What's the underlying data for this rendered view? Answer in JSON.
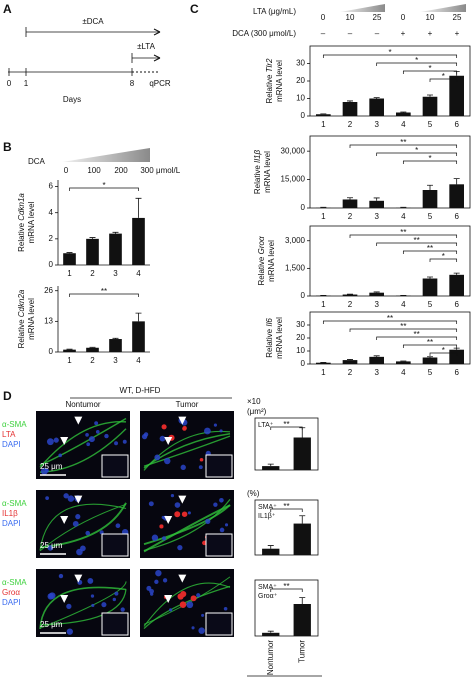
{
  "figure": {
    "panel_a": {
      "letter": "A",
      "dca": "±DCA",
      "lta": "±LTA",
      "days": [
        0,
        1,
        8
      ],
      "qpcr": "qPCR",
      "axis_label": "Days"
    },
    "panel_b": {
      "letter": "B",
      "treatment": "DCA",
      "doses": [
        0,
        100,
        200,
        300
      ],
      "unit": "μmol/L"
    },
    "panel_c": {
      "letter": "C",
      "lta_label": "LTA (μg/mL)",
      "lta_doses": [
        0,
        10,
        25,
        0,
        10,
        25
      ],
      "dca_label": "DCA (300 μmol/L)",
      "dca_signs": [
        "–",
        "–",
        "–",
        "+",
        "+",
        "+"
      ]
    },
    "panel_d": {
      "letter": "D",
      "group": "WT, D-HFD",
      "columns": [
        "Nontumor",
        "Tumor"
      ],
      "rows": [
        [
          "α-SMA",
          "LTA",
          "DAPI"
        ],
        [
          "α-SMA",
          "IL1β",
          "DAPI"
        ],
        [
          "α-SMA",
          "Groα",
          "DAPI"
        ]
      ],
      "scale_bar": "25 μm"
    }
  },
  "chart_data": [
    {
      "type": "bar",
      "y_label": {
        "prefix": "Relative",
        "gene": "Cdkn1a",
        "suffix": "mRNA level"
      },
      "categories": [
        "1",
        "2",
        "3",
        "4"
      ],
      "values": [
        0.9,
        2.0,
        2.4,
        3.6
      ],
      "errors": [
        0.05,
        0.1,
        0.1,
        1.5
      ],
      "color": "#111111",
      "ylim": [
        0,
        6.5
      ],
      "yticks": [
        0,
        2,
        4,
        6
      ],
      "annotations": [
        {
          "text": "*",
          "between": [
            0,
            3
          ]
        }
      ]
    },
    {
      "type": "bar",
      "y_label": {
        "prefix": "Relative",
        "gene": "Cdkn2a",
        "suffix": "mRNA level"
      },
      "categories": [
        "1",
        "2",
        "3",
        "4"
      ],
      "values": [
        1,
        1.8,
        5.5,
        13
      ],
      "errors": [
        0.2,
        0.2,
        0.3,
        3.5
      ],
      "color": "#111111",
      "ylim": [
        0,
        28
      ],
      "yticks": [
        0,
        13,
        26
      ],
      "annotations": [
        {
          "text": "**",
          "between": [
            0,
            3
          ]
        }
      ]
    },
    {
      "type": "bar",
      "y_label": {
        "prefix": "Relative",
        "gene": "Tlr2",
        "suffix": "mRNA level"
      },
      "categories": [
        "1",
        "2",
        "3",
        "4",
        "5",
        "6"
      ],
      "values": [
        1,
        8,
        10,
        2,
        11,
        23
      ],
      "errors": [
        0.2,
        0.6,
        0.5,
        0.3,
        1,
        2.5
      ],
      "color": "#111111",
      "ylim": [
        0,
        40
      ],
      "yticks": [
        0,
        10,
        20,
        30
      ],
      "annotations": [
        {
          "text": "*",
          "between": [
            0,
            5
          ]
        },
        {
          "text": "*",
          "between": [
            2,
            5
          ]
        },
        {
          "text": "*",
          "between": [
            3,
            5
          ]
        },
        {
          "text": "*",
          "between": [
            4,
            5
          ]
        }
      ]
    },
    {
      "type": "bar",
      "y_label": {
        "prefix": "Relative",
        "gene": "Il1β",
        "suffix": "mRNA level"
      },
      "categories": [
        "1",
        "2",
        "3",
        "4",
        "5",
        "6"
      ],
      "values": [
        100,
        4500,
        3800,
        100,
        9500,
        12500
      ],
      "errors": [
        300,
        900,
        1500,
        300,
        2500,
        3000
      ],
      "color": "#111111",
      "ylim": [
        0,
        38000
      ],
      "yticks": [
        0,
        {
          "value": 15000,
          "label": "15,000"
        },
        {
          "value": 30000,
          "label": "30,000"
        }
      ],
      "annotations": [
        {
          "text": "**",
          "between": [
            1,
            5
          ]
        },
        {
          "text": "*",
          "between": [
            2,
            5
          ]
        },
        {
          "text": "*",
          "between": [
            3,
            5
          ]
        }
      ]
    },
    {
      "type": "bar",
      "y_label": {
        "prefix": "Relative",
        "gene": "Groα",
        "suffix": "mRNA level"
      },
      "categories": [
        "1",
        "2",
        "3",
        "4",
        "5",
        "6"
      ],
      "values": [
        20,
        80,
        180,
        20,
        950,
        1150
      ],
      "errors": [
        10,
        20,
        40,
        10,
        80,
        90
      ],
      "color": "#111111",
      "ylim": [
        0,
        3800
      ],
      "yticks": [
        0,
        {
          "value": 1500,
          "label": "1,500"
        },
        {
          "value": 3000,
          "label": "3,000"
        }
      ],
      "annotations": [
        {
          "text": "**",
          "between": [
            1,
            5
          ]
        },
        {
          "text": "**",
          "between": [
            2,
            5
          ]
        },
        {
          "text": "**",
          "between": [
            3,
            5
          ]
        },
        {
          "text": "*",
          "between": [
            4,
            5
          ]
        }
      ]
    },
    {
      "type": "bar",
      "y_label": {
        "prefix": "Relative",
        "gene": "Il6",
        "suffix": "mRNA level"
      },
      "categories": [
        "1",
        "2",
        "3",
        "4",
        "5",
        "6"
      ],
      "values": [
        1,
        3,
        5.5,
        2,
        5,
        11
      ],
      "errors": [
        0.2,
        0.5,
        0.8,
        0.3,
        0.6,
        1.2
      ],
      "color": "#111111",
      "ylim": [
        0,
        40
      ],
      "yticks": [
        0,
        10,
        20,
        30
      ],
      "annotations": [
        {
          "text": "**",
          "between": [
            0,
            5
          ]
        },
        {
          "text": "**",
          "between": [
            1,
            5
          ]
        },
        {
          "text": "**",
          "between": [
            2,
            5
          ]
        },
        {
          "text": "**",
          "between": [
            3,
            5
          ]
        },
        {
          "text": "*",
          "between": [
            4,
            5
          ]
        }
      ]
    },
    {
      "type": "bar",
      "unit_lines": [
        "×10",
        "(μm²)"
      ],
      "box_label": [
        "LTA⁺"
      ],
      "categories": [
        null,
        null
      ],
      "values": [
        12,
        100
      ],
      "errors": [
        6,
        30
      ],
      "color": "#111111",
      "ylim": [
        0,
        160
      ],
      "annotations": [
        {
          "text": "**",
          "between": [
            0,
            1
          ]
        }
      ]
    },
    {
      "type": "bar",
      "unit_lines": [
        "(%)"
      ],
      "box_label": [
        "SMA⁺",
        "IL1β⁺"
      ],
      "categories": [
        null,
        null
      ],
      "values": [
        4,
        20
      ],
      "errors": [
        2,
        5
      ],
      "color": "#111111",
      "ylim": [
        0,
        35
      ],
      "annotations": [
        {
          "text": "**",
          "between": [
            0,
            1
          ]
        }
      ]
    },
    {
      "type": "bar",
      "box_label": [
        "SMA⁺",
        "Groα⁺"
      ],
      "categories": [
        "Nontumor",
        "Tumor"
      ],
      "x_label": "WT, D-HFD",
      "values": [
        2,
        20
      ],
      "errors": [
        1,
        4
      ],
      "color": "#111111",
      "ylim": [
        0,
        35
      ],
      "annotations": [
        {
          "text": "**",
          "between": [
            0,
            1
          ]
        }
      ]
    }
  ]
}
